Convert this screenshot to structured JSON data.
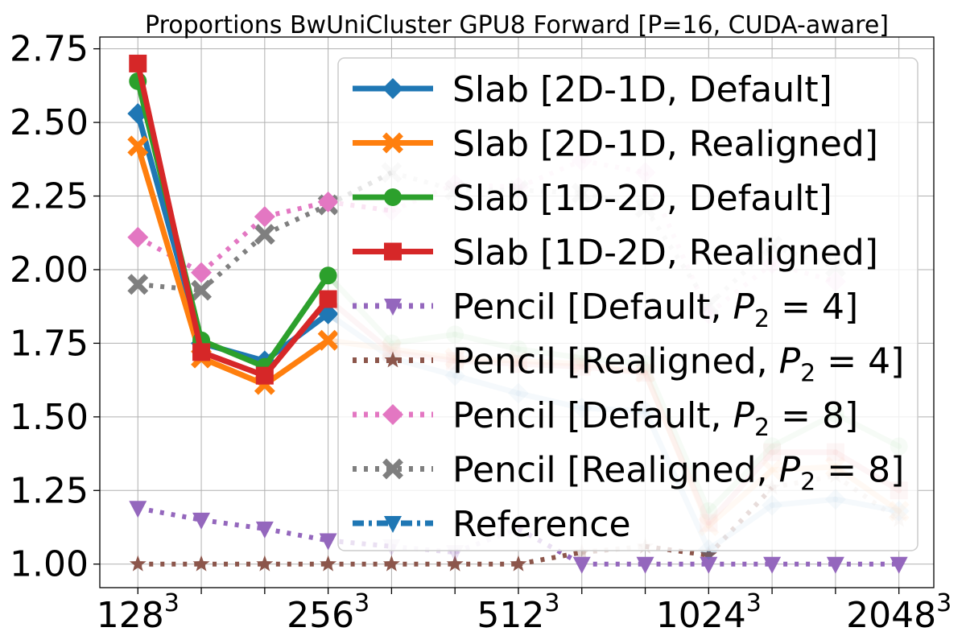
{
  "chart_data": {
    "type": "line",
    "title": "Proportions BwUniCluster GPU8 Forward [P=16, CUDA-aware]",
    "xlabel": "",
    "ylabel": "",
    "x_positions": [
      0,
      1,
      2,
      3,
      4,
      5,
      6,
      7,
      8,
      9,
      10,
      11,
      12
    ],
    "xlim": [
      -0.6,
      12.55
    ],
    "ylim": [
      0.92,
      2.79
    ],
    "yticks": [
      1.0,
      1.25,
      1.5,
      1.75,
      2.0,
      2.25,
      2.5,
      2.75
    ],
    "ytick_labels": [
      "1.00",
      "1.25",
      "1.50",
      "1.75",
      "2.00",
      "2.25",
      "2.50",
      "2.75"
    ],
    "xticks_labeled": [
      {
        "pos": 0,
        "base": "128",
        "exp": "3"
      },
      {
        "pos": 3,
        "base": "256",
        "exp": "3"
      },
      {
        "pos": 6,
        "base": "512",
        "exp": "3"
      },
      {
        "pos": 9,
        "base": "1024",
        "exp": "3"
      },
      {
        "pos": 12,
        "base": "2048",
        "exp": "3"
      }
    ],
    "xticks_minor": [
      1,
      2,
      4,
      5,
      7,
      8,
      10,
      11
    ],
    "grid": true,
    "legend_position": "upper-right",
    "series": [
      {
        "name": "Slab [2D-1D, Default]",
        "color": "#1f77b4",
        "marker": "diamond",
        "linestyle": "solid",
        "values": [
          2.53,
          1.75,
          1.69,
          1.85,
          1.7,
          1.64,
          1.58,
          1.53,
          1.52,
          1.05,
          1.2,
          1.22,
          1.18
        ],
        "faded_from": 4
      },
      {
        "name": "Slab [2D-1D, Realigned]",
        "color": "#ff7f0e",
        "marker": "x-filled",
        "linestyle": "solid",
        "values": [
          2.42,
          1.7,
          1.61,
          1.76,
          1.73,
          1.7,
          1.69,
          1.68,
          1.65,
          1.13,
          1.32,
          1.33,
          1.18
        ],
        "faded_from": 4
      },
      {
        "name": "Slab [1D-2D, Default]",
        "color": "#2ca02c",
        "marker": "circle",
        "linestyle": "solid",
        "values": [
          2.64,
          1.76,
          1.67,
          1.98,
          1.75,
          1.78,
          1.73,
          1.7,
          1.68,
          1.18,
          1.4,
          1.51,
          1.4
        ],
        "faded_from": 4
      },
      {
        "name": "Slab [1D-2D, Realigned]",
        "color": "#d62728",
        "marker": "square",
        "linestyle": "solid",
        "values": [
          2.7,
          1.72,
          1.64,
          1.9,
          1.72,
          1.69,
          1.68,
          1.67,
          1.65,
          1.14,
          1.38,
          1.38,
          1.25
        ],
        "faded_from": 4
      },
      {
        "name": "Pencil [Default, P2=4]",
        "label_main": "Pencil [Default, ",
        "label_var": "P",
        "label_sub": "2",
        "label_rest": " = 4]",
        "color": "#9467bd",
        "marker": "triangle-down",
        "linestyle": "dotted",
        "values": [
          1.19,
          1.15,
          1.12,
          1.08,
          1.06,
          1.04,
          1.12,
          1.0,
          1.0,
          1.0,
          1.0,
          1.0,
          1.0
        ],
        "faded": [
          4,
          5,
          6
        ]
      },
      {
        "name": "Pencil [Realigned, P2=4]",
        "label_main": "Pencil [Realigned, ",
        "label_var": "P",
        "label_sub": "2",
        "label_rest": " = 4]",
        "color": "#8c564b",
        "marker": "star",
        "linestyle": "dotted",
        "values": [
          1.0,
          1.0,
          1.0,
          1.0,
          1.0,
          1.0,
          1.0,
          1.04,
          1.06,
          1.03,
          1.26,
          1.3,
          1.15
        ],
        "faded": [
          7,
          8,
          10,
          11,
          12
        ]
      },
      {
        "name": "Pencil [Default, P2=8]",
        "label_main": "Pencil [Default, ",
        "label_var": "P",
        "label_sub": "2",
        "label_rest": " = 8]",
        "color": "#e377c2",
        "marker": "diamond",
        "linestyle": "dotted",
        "values": [
          2.11,
          1.99,
          2.18,
          2.23,
          2.2,
          2.29,
          2.28,
          2.37,
          2.33,
          1.85,
          2.02,
          1.96,
          null
        ],
        "faded": [
          4,
          5,
          6,
          7,
          8,
          9,
          10,
          11
        ]
      },
      {
        "name": "Pencil [Realigned, P2=8]",
        "label_main": "Pencil [Realigned, ",
        "label_var": "P",
        "label_sub": "2",
        "label_rest": " = 8]",
        "color": "#7f7f7f",
        "marker": "x-filled",
        "linestyle": "dotted",
        "values": [
          1.95,
          1.93,
          2.12,
          2.22,
          2.33,
          2.27,
          2.27,
          2.26,
          2.21,
          1.88,
          2.08,
          2.01,
          null
        ],
        "faded": [
          4,
          5,
          6,
          7,
          8,
          9,
          10,
          11
        ]
      },
      {
        "name": "Reference",
        "color": "#1f77b4",
        "marker": "triangle-down",
        "linestyle": "dashdot",
        "values": []
      }
    ]
  }
}
